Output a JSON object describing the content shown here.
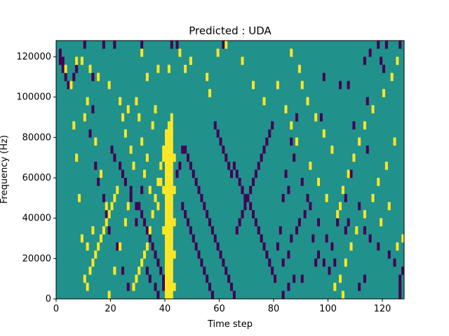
{
  "chart_data": {
    "type": "heatmap",
    "title": "Predicted : UDA",
    "xlabel": "Time step",
    "ylabel": "Frequency (Hz)",
    "xlim": [
      0,
      128
    ],
    "ylim": [
      0,
      128000
    ],
    "x_ticks": [
      "0",
      "20",
      "40",
      "60",
      "80",
      "100",
      "120"
    ],
    "x_tick_values": [
      0,
      20,
      40,
      60,
      80,
      100,
      120
    ],
    "y_ticks": [
      "0",
      "20000",
      "40000",
      "60000",
      "80000",
      "100000",
      "120000"
    ],
    "y_tick_values": [
      0,
      20000,
      40000,
      60000,
      80000,
      100000,
      120000
    ],
    "colormap": "viridis",
    "background_color": "#21918c",
    "cell_colors": {
      "low": "#440154",
      "mid": "#21918c",
      "high": "#fde725"
    },
    "n_time_steps": 128,
    "n_freq_bins": 32,
    "freq_bin_width": 4000,
    "cells": {
      "low": [
        [
          1,
          29
        ],
        [
          1,
          30
        ],
        [
          2,
          29
        ],
        [
          2,
          28
        ],
        [
          3,
          27
        ],
        [
          4,
          26
        ],
        [
          6,
          27
        ],
        [
          7,
          28
        ],
        [
          10,
          31
        ],
        [
          13,
          23
        ],
        [
          13,
          27
        ],
        [
          17,
          31
        ],
        [
          21,
          31
        ],
        [
          31,
          31
        ],
        [
          42,
          31
        ],
        [
          44,
          31
        ],
        [
          61,
          31
        ],
        [
          118,
          31
        ],
        [
          115,
          30
        ],
        [
          113,
          29
        ],
        [
          119,
          29
        ],
        [
          121,
          31
        ],
        [
          126,
          31
        ],
        [
          120,
          28
        ],
        [
          98,
          27
        ],
        [
          97,
          22
        ],
        [
          104,
          26
        ],
        [
          107,
          26
        ],
        [
          114,
          24
        ],
        [
          109,
          21
        ],
        [
          108,
          15
        ],
        [
          111,
          11
        ],
        [
          114,
          18
        ],
        [
          106,
          12
        ],
        [
          107,
          9
        ],
        [
          103,
          9
        ],
        [
          106,
          8
        ],
        [
          113,
          8
        ],
        [
          115,
          7
        ],
        [
          118,
          6
        ],
        [
          122,
          5
        ],
        [
          127,
          3
        ],
        [
          126,
          2
        ],
        [
          126,
          1
        ],
        [
          126,
          0
        ],
        [
          124,
          4
        ],
        [
          113,
          2
        ],
        [
          111,
          1
        ],
        [
          100,
          3
        ],
        [
          98,
          4
        ],
        [
          95,
          4
        ],
        [
          90,
          2
        ],
        [
          87,
          2
        ],
        [
          85,
          1
        ],
        [
          83,
          0
        ],
        [
          80,
          2
        ],
        [
          79,
          3
        ],
        [
          81,
          6
        ],
        [
          82,
          8
        ],
        [
          83,
          12
        ],
        [
          84,
          15
        ],
        [
          86,
          19
        ],
        [
          88,
          22
        ],
        [
          85,
          13
        ],
        [
          87,
          17
        ],
        [
          90,
          14
        ],
        [
          93,
          11
        ],
        [
          96,
          9
        ],
        [
          99,
          7
        ],
        [
          101,
          6
        ],
        [
          102,
          4
        ],
        [
          91,
          10
        ],
        [
          92,
          12
        ],
        [
          94,
          7
        ],
        [
          96,
          5
        ],
        [
          89,
          9
        ],
        [
          88,
          8
        ],
        [
          86,
          7
        ],
        [
          85,
          5
        ],
        [
          83,
          4
        ],
        [
          20,
          18
        ],
        [
          21,
          17
        ],
        [
          23,
          16
        ],
        [
          24,
          15
        ],
        [
          25,
          14
        ],
        [
          27,
          12
        ],
        [
          27,
          13
        ],
        [
          29,
          11
        ],
        [
          31,
          10
        ],
        [
          32,
          9
        ],
        [
          33,
          8
        ],
        [
          34,
          7
        ],
        [
          35,
          6
        ],
        [
          36,
          5
        ],
        [
          37,
          4
        ],
        [
          38,
          3
        ],
        [
          39,
          2
        ],
        [
          39,
          1
        ],
        [
          34,
          2
        ],
        [
          33,
          3
        ],
        [
          36,
          1
        ],
        [
          37,
          0
        ],
        [
          15,
          14
        ],
        [
          14,
          16
        ],
        [
          12,
          20
        ],
        [
          17,
          12
        ],
        [
          18,
          10
        ],
        [
          19,
          8
        ],
        [
          22,
          6
        ],
        [
          24,
          3
        ],
        [
          26,
          1
        ],
        [
          29,
          9
        ],
        [
          30,
          11
        ],
        [
          31,
          13
        ],
        [
          44,
          15
        ],
        [
          45,
          16
        ],
        [
          46,
          18
        ],
        [
          47,
          18
        ],
        [
          48,
          17
        ],
        [
          49,
          16
        ],
        [
          50,
          15
        ],
        [
          51,
          14
        ],
        [
          52,
          13
        ],
        [
          53,
          12
        ],
        [
          54,
          11
        ],
        [
          55,
          10
        ],
        [
          56,
          9
        ],
        [
          57,
          8
        ],
        [
          58,
          7
        ],
        [
          59,
          6
        ],
        [
          60,
          5
        ],
        [
          61,
          4
        ],
        [
          62,
          3
        ],
        [
          63,
          2
        ],
        [
          64,
          1
        ],
        [
          65,
          0
        ],
        [
          46,
          11
        ],
        [
          47,
          10
        ],
        [
          48,
          9
        ],
        [
          49,
          8
        ],
        [
          50,
          7
        ],
        [
          51,
          6
        ],
        [
          52,
          5
        ],
        [
          53,
          4
        ],
        [
          54,
          3
        ],
        [
          55,
          2
        ],
        [
          56,
          1
        ],
        [
          57,
          0
        ],
        [
          66,
          8
        ],
        [
          67,
          9
        ],
        [
          68,
          10
        ],
        [
          69,
          11
        ],
        [
          70,
          12
        ],
        [
          71,
          13
        ],
        [
          72,
          14
        ],
        [
          73,
          15
        ],
        [
          74,
          16
        ],
        [
          75,
          17
        ],
        [
          76,
          18
        ],
        [
          77,
          19
        ],
        [
          78,
          20
        ],
        [
          79,
          21
        ],
        [
          65,
          16
        ],
        [
          66,
          15
        ],
        [
          67,
          14
        ],
        [
          68,
          13
        ],
        [
          69,
          12
        ],
        [
          71,
          11
        ],
        [
          72,
          10
        ],
        [
          73,
          9
        ],
        [
          74,
          8
        ],
        [
          75,
          7
        ],
        [
          76,
          6
        ],
        [
          77,
          5
        ],
        [
          78,
          4
        ],
        [
          58,
          21
        ],
        [
          59,
          20
        ],
        [
          60,
          19
        ],
        [
          61,
          18
        ],
        [
          62,
          17
        ],
        [
          63,
          16
        ],
        [
          64,
          15
        ]
      ],
      "high": [
        [
          3,
          28
        ],
        [
          7,
          29
        ],
        [
          9,
          29
        ],
        [
          12,
          28
        ],
        [
          15,
          27
        ],
        [
          19,
          26
        ],
        [
          23,
          24
        ],
        [
          26,
          23
        ],
        [
          31,
          30
        ],
        [
          33,
          27
        ],
        [
          37,
          28
        ],
        [
          41,
          28
        ],
        [
          45,
          30
        ],
        [
          47,
          28
        ],
        [
          49,
          29
        ],
        [
          55,
          27
        ],
        [
          56,
          25
        ],
        [
          59,
          30
        ],
        [
          62,
          31
        ],
        [
          68,
          29
        ],
        [
          72,
          26
        ],
        [
          76,
          24
        ],
        [
          81,
          26
        ],
        [
          84,
          23
        ],
        [
          86,
          21
        ],
        [
          88,
          19
        ],
        [
          93,
          16
        ],
        [
          96,
          14
        ],
        [
          99,
          12
        ],
        [
          103,
          10
        ],
        [
          104,
          11
        ],
        [
          105,
          13
        ],
        [
          107,
          15
        ],
        [
          109,
          17
        ],
        [
          111,
          19
        ],
        [
          113,
          21
        ],
        [
          116,
          23
        ],
        [
          120,
          25
        ],
        [
          123,
          27
        ],
        [
          125,
          29
        ],
        [
          124,
          19
        ],
        [
          121,
          16
        ],
        [
          118,
          14
        ],
        [
          116,
          12
        ],
        [
          113,
          10
        ],
        [
          110,
          8
        ],
        [
          108,
          6
        ],
        [
          106,
          4
        ],
        [
          104,
          2
        ],
        [
          102,
          1
        ],
        [
          105,
          0
        ],
        [
          127,
          7
        ],
        [
          125,
          6
        ],
        [
          119,
          9
        ],
        [
          122,
          11
        ],
        [
          101,
          18
        ],
        [
          98,
          20
        ],
        [
          95,
          22
        ],
        [
          92,
          24
        ],
        [
          90,
          26
        ],
        [
          89,
          28
        ],
        [
          86,
          30
        ],
        [
          12,
          3
        ],
        [
          13,
          4
        ],
        [
          14,
          5
        ],
        [
          15,
          6
        ],
        [
          16,
          7
        ],
        [
          17,
          8
        ],
        [
          18,
          9
        ],
        [
          19,
          10
        ],
        [
          20,
          11
        ],
        [
          21,
          12
        ],
        [
          22,
          13
        ],
        [
          11,
          1
        ],
        [
          10,
          2
        ],
        [
          9,
          7
        ],
        [
          8,
          12
        ],
        [
          7,
          17
        ],
        [
          6,
          21
        ],
        [
          5,
          26
        ],
        [
          11,
          24
        ],
        [
          10,
          22
        ],
        [
          14,
          19
        ],
        [
          16,
          15
        ],
        [
          18,
          11
        ],
        [
          13,
          8
        ],
        [
          11,
          6
        ],
        [
          28,
          1
        ],
        [
          29,
          2
        ],
        [
          30,
          3
        ],
        [
          31,
          4
        ],
        [
          32,
          5
        ],
        [
          33,
          6
        ],
        [
          34,
          8
        ],
        [
          35,
          10
        ],
        [
          36,
          12
        ],
        [
          37,
          14
        ],
        [
          38,
          16
        ],
        [
          39,
          18
        ],
        [
          40,
          20
        ],
        [
          35,
          21
        ],
        [
          36,
          23
        ],
        [
          38,
          14
        ],
        [
          37,
          11
        ],
        [
          34,
          13
        ],
        [
          32,
          15
        ],
        [
          33,
          17
        ],
        [
          31,
          19
        ],
        [
          30,
          22
        ],
        [
          29,
          24
        ],
        [
          25,
          9
        ],
        [
          23,
          6
        ],
        [
          21,
          3
        ],
        [
          19,
          0
        ],
        [
          25,
          20
        ],
        [
          24,
          22
        ],
        [
          27,
          18
        ],
        [
          28,
          16
        ],
        [
          26,
          11
        ]
      ],
      "high_band": [
        [
          40,
          0
        ],
        [
          40,
          1
        ],
        [
          40,
          2
        ],
        [
          40,
          3
        ],
        [
          40,
          4
        ],
        [
          40,
          5
        ],
        [
          40,
          6
        ],
        [
          40,
          7
        ],
        [
          40,
          8
        ],
        [
          40,
          9
        ],
        [
          40,
          10
        ],
        [
          40,
          11
        ],
        [
          40,
          12
        ],
        [
          40,
          13
        ],
        [
          40,
          14
        ],
        [
          40,
          15
        ],
        [
          40,
          16
        ],
        [
          40,
          17
        ],
        [
          40,
          18
        ],
        [
          40,
          19
        ],
        [
          40,
          20
        ],
        [
          41,
          0
        ],
        [
          41,
          1
        ],
        [
          41,
          2
        ],
        [
          41,
          3
        ],
        [
          41,
          4
        ],
        [
          41,
          5
        ],
        [
          41,
          6
        ],
        [
          41,
          7
        ],
        [
          41,
          8
        ],
        [
          41,
          9
        ],
        [
          41,
          10
        ],
        [
          41,
          11
        ],
        [
          41,
          12
        ],
        [
          41,
          13
        ],
        [
          41,
          14
        ],
        [
          41,
          15
        ],
        [
          41,
          16
        ],
        [
          41,
          17
        ],
        [
          41,
          18
        ],
        [
          41,
          19
        ],
        [
          41,
          20
        ],
        [
          41,
          21
        ],
        [
          42,
          0
        ],
        [
          42,
          1
        ],
        [
          42,
          2
        ],
        [
          42,
          3
        ],
        [
          42,
          4
        ],
        [
          42,
          5
        ],
        [
          42,
          6
        ],
        [
          42,
          7
        ],
        [
          42,
          8
        ],
        [
          42,
          9
        ],
        [
          42,
          10
        ],
        [
          42,
          11
        ],
        [
          42,
          12
        ],
        [
          42,
          13
        ],
        [
          42,
          14
        ],
        [
          42,
          15
        ],
        [
          42,
          16
        ],
        [
          42,
          17
        ],
        [
          42,
          18
        ],
        [
          42,
          19
        ],
        [
          42,
          20
        ],
        [
          42,
          21
        ],
        [
          42,
          22
        ],
        [
          43,
          1
        ],
        [
          43,
          5
        ],
        [
          43,
          9
        ],
        [
          43,
          13
        ],
        [
          43,
          17
        ],
        [
          39,
          17
        ],
        [
          39,
          13
        ],
        [
          39,
          8
        ]
      ]
    }
  }
}
